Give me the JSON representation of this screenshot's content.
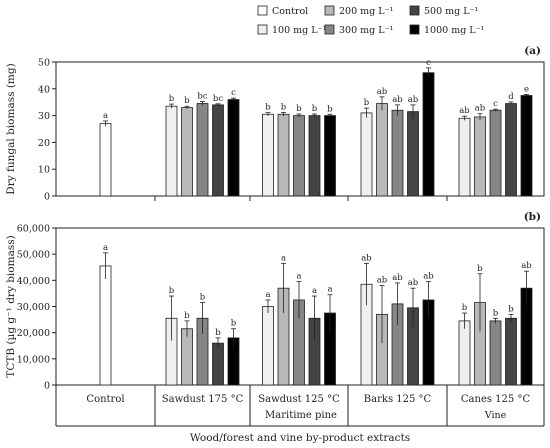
{
  "legend": [
    {
      "name": "Control",
      "color": "#ffffff"
    },
    {
      "name": "100 mg L⁻¹",
      "color": "#efefef"
    },
    {
      "name": "200 mg L⁻¹",
      "color": "#b8b8b8"
    },
    {
      "name": "300 mg L⁻¹",
      "color": "#868686"
    },
    {
      "name": "500 mg L⁻¹",
      "color": "#444444"
    },
    {
      "name": "1000 mg L⁻¹",
      "color": "#000000"
    }
  ],
  "x_axis": {
    "categories": [
      "Control",
      "Sawdust 175 °C",
      "Sawdust 125 °C",
      "Barks 125 °C",
      "Canes 125 °C"
    ],
    "groups": [
      {
        "label": "Maritime pine",
        "span": [
          1,
          3
        ]
      },
      {
        "label": "Vine",
        "span": [
          4,
          4
        ]
      }
    ],
    "title": "Wood/forest and vine by-product extracts"
  },
  "chart_data": [
    {
      "type": "bar",
      "panel_label": "(a)",
      "ylabel": "Dry fungal biomass (mg)",
      "ylim": [
        0,
        50
      ],
      "yticks": [
        "0",
        "10",
        "20",
        "30",
        "40",
        "50"
      ],
      "series": [
        {
          "name": "Control",
          "values": [
            27,
            null,
            null,
            null,
            null
          ],
          "errors": [
            1,
            null,
            null,
            null,
            null
          ],
          "letters": [
            "a",
            null,
            null,
            null,
            null
          ]
        },
        {
          "name": "100 mg L⁻¹",
          "values": [
            null,
            33.5,
            30.5,
            31,
            29
          ],
          "errors": [
            null,
            0.8,
            0.6,
            1.8,
            0.8
          ],
          "letters": [
            null,
            "b",
            "b",
            "b",
            "ab"
          ]
        },
        {
          "name": "200 mg L⁻¹",
          "values": [
            null,
            33,
            30.5,
            34.5,
            29.5
          ],
          "errors": [
            null,
            0.5,
            0.7,
            2.5,
            1.2
          ],
          "letters": [
            null,
            "b",
            "b",
            "ab",
            "ab"
          ]
        },
        {
          "name": "300 mg L⁻¹",
          "values": [
            null,
            34.5,
            30,
            32,
            32
          ],
          "errors": [
            null,
            0.8,
            0.6,
            2,
            0.4
          ],
          "letters": [
            null,
            "bc",
            "b",
            "ab",
            "c"
          ]
        },
        {
          "name": "500 mg L⁻¹",
          "values": [
            null,
            34,
            30,
            31.5,
            34.5
          ],
          "errors": [
            null,
            0.4,
            0.6,
            2.5,
            0.6
          ],
          "letters": [
            null,
            "bc",
            "b",
            "ab",
            "d"
          ]
        },
        {
          "name": "1000 mg L⁻¹",
          "values": [
            null,
            36,
            30,
            46,
            37.5
          ],
          "errors": [
            null,
            0.5,
            0.5,
            1.8,
            0.4
          ],
          "letters": [
            null,
            "c",
            "b",
            "c",
            "e"
          ]
        }
      ]
    },
    {
      "type": "bar",
      "panel_label": "(b)",
      "ylabel": "TCTB (µg g⁻¹ dry biomass)",
      "ylim": [
        0,
        60000
      ],
      "yticks": [
        "0",
        "10,000",
        "20,000",
        "30,000",
        "40,000",
        "50,000",
        "60,000"
      ],
      "series": [
        {
          "name": "Control",
          "values": [
            45500,
            null,
            null,
            null,
            null
          ],
          "errors": [
            5000,
            null,
            null,
            null,
            null
          ],
          "letters": [
            "a",
            null,
            null,
            null,
            null
          ]
        },
        {
          "name": "100 mg L⁻¹",
          "values": [
            null,
            25500,
            30000,
            38500,
            24500
          ],
          "errors": [
            null,
            8500,
            2500,
            8000,
            3000
          ],
          "letters": [
            null,
            "b",
            "a",
            "ab",
            "b"
          ]
        },
        {
          "name": "200 mg L⁻¹",
          "values": [
            null,
            21500,
            37000,
            27000,
            31500
          ],
          "errors": [
            null,
            3000,
            9500,
            11000,
            11000
          ],
          "letters": [
            null,
            "b",
            "a",
            "ab",
            "b"
          ]
        },
        {
          "name": "300 mg L⁻¹",
          "values": [
            null,
            25500,
            32500,
            31000,
            24500
          ],
          "errors": [
            null,
            6000,
            7000,
            8000,
            1000
          ],
          "letters": [
            null,
            "b",
            "a",
            "ab",
            "b"
          ]
        },
        {
          "name": "500 mg L⁻¹",
          "values": [
            null,
            16000,
            25500,
            29500,
            25500
          ],
          "errors": [
            null,
            2000,
            8500,
            7500,
            1500
          ],
          "letters": [
            null,
            "b",
            "a",
            "ab",
            "b"
          ]
        },
        {
          "name": "1000 mg L⁻¹",
          "values": [
            null,
            18000,
            27500,
            32500,
            37000
          ],
          "errors": [
            null,
            3500,
            7000,
            7000,
            6500
          ],
          "letters": [
            null,
            "b",
            "a",
            "ab",
            "ab"
          ]
        }
      ]
    }
  ]
}
